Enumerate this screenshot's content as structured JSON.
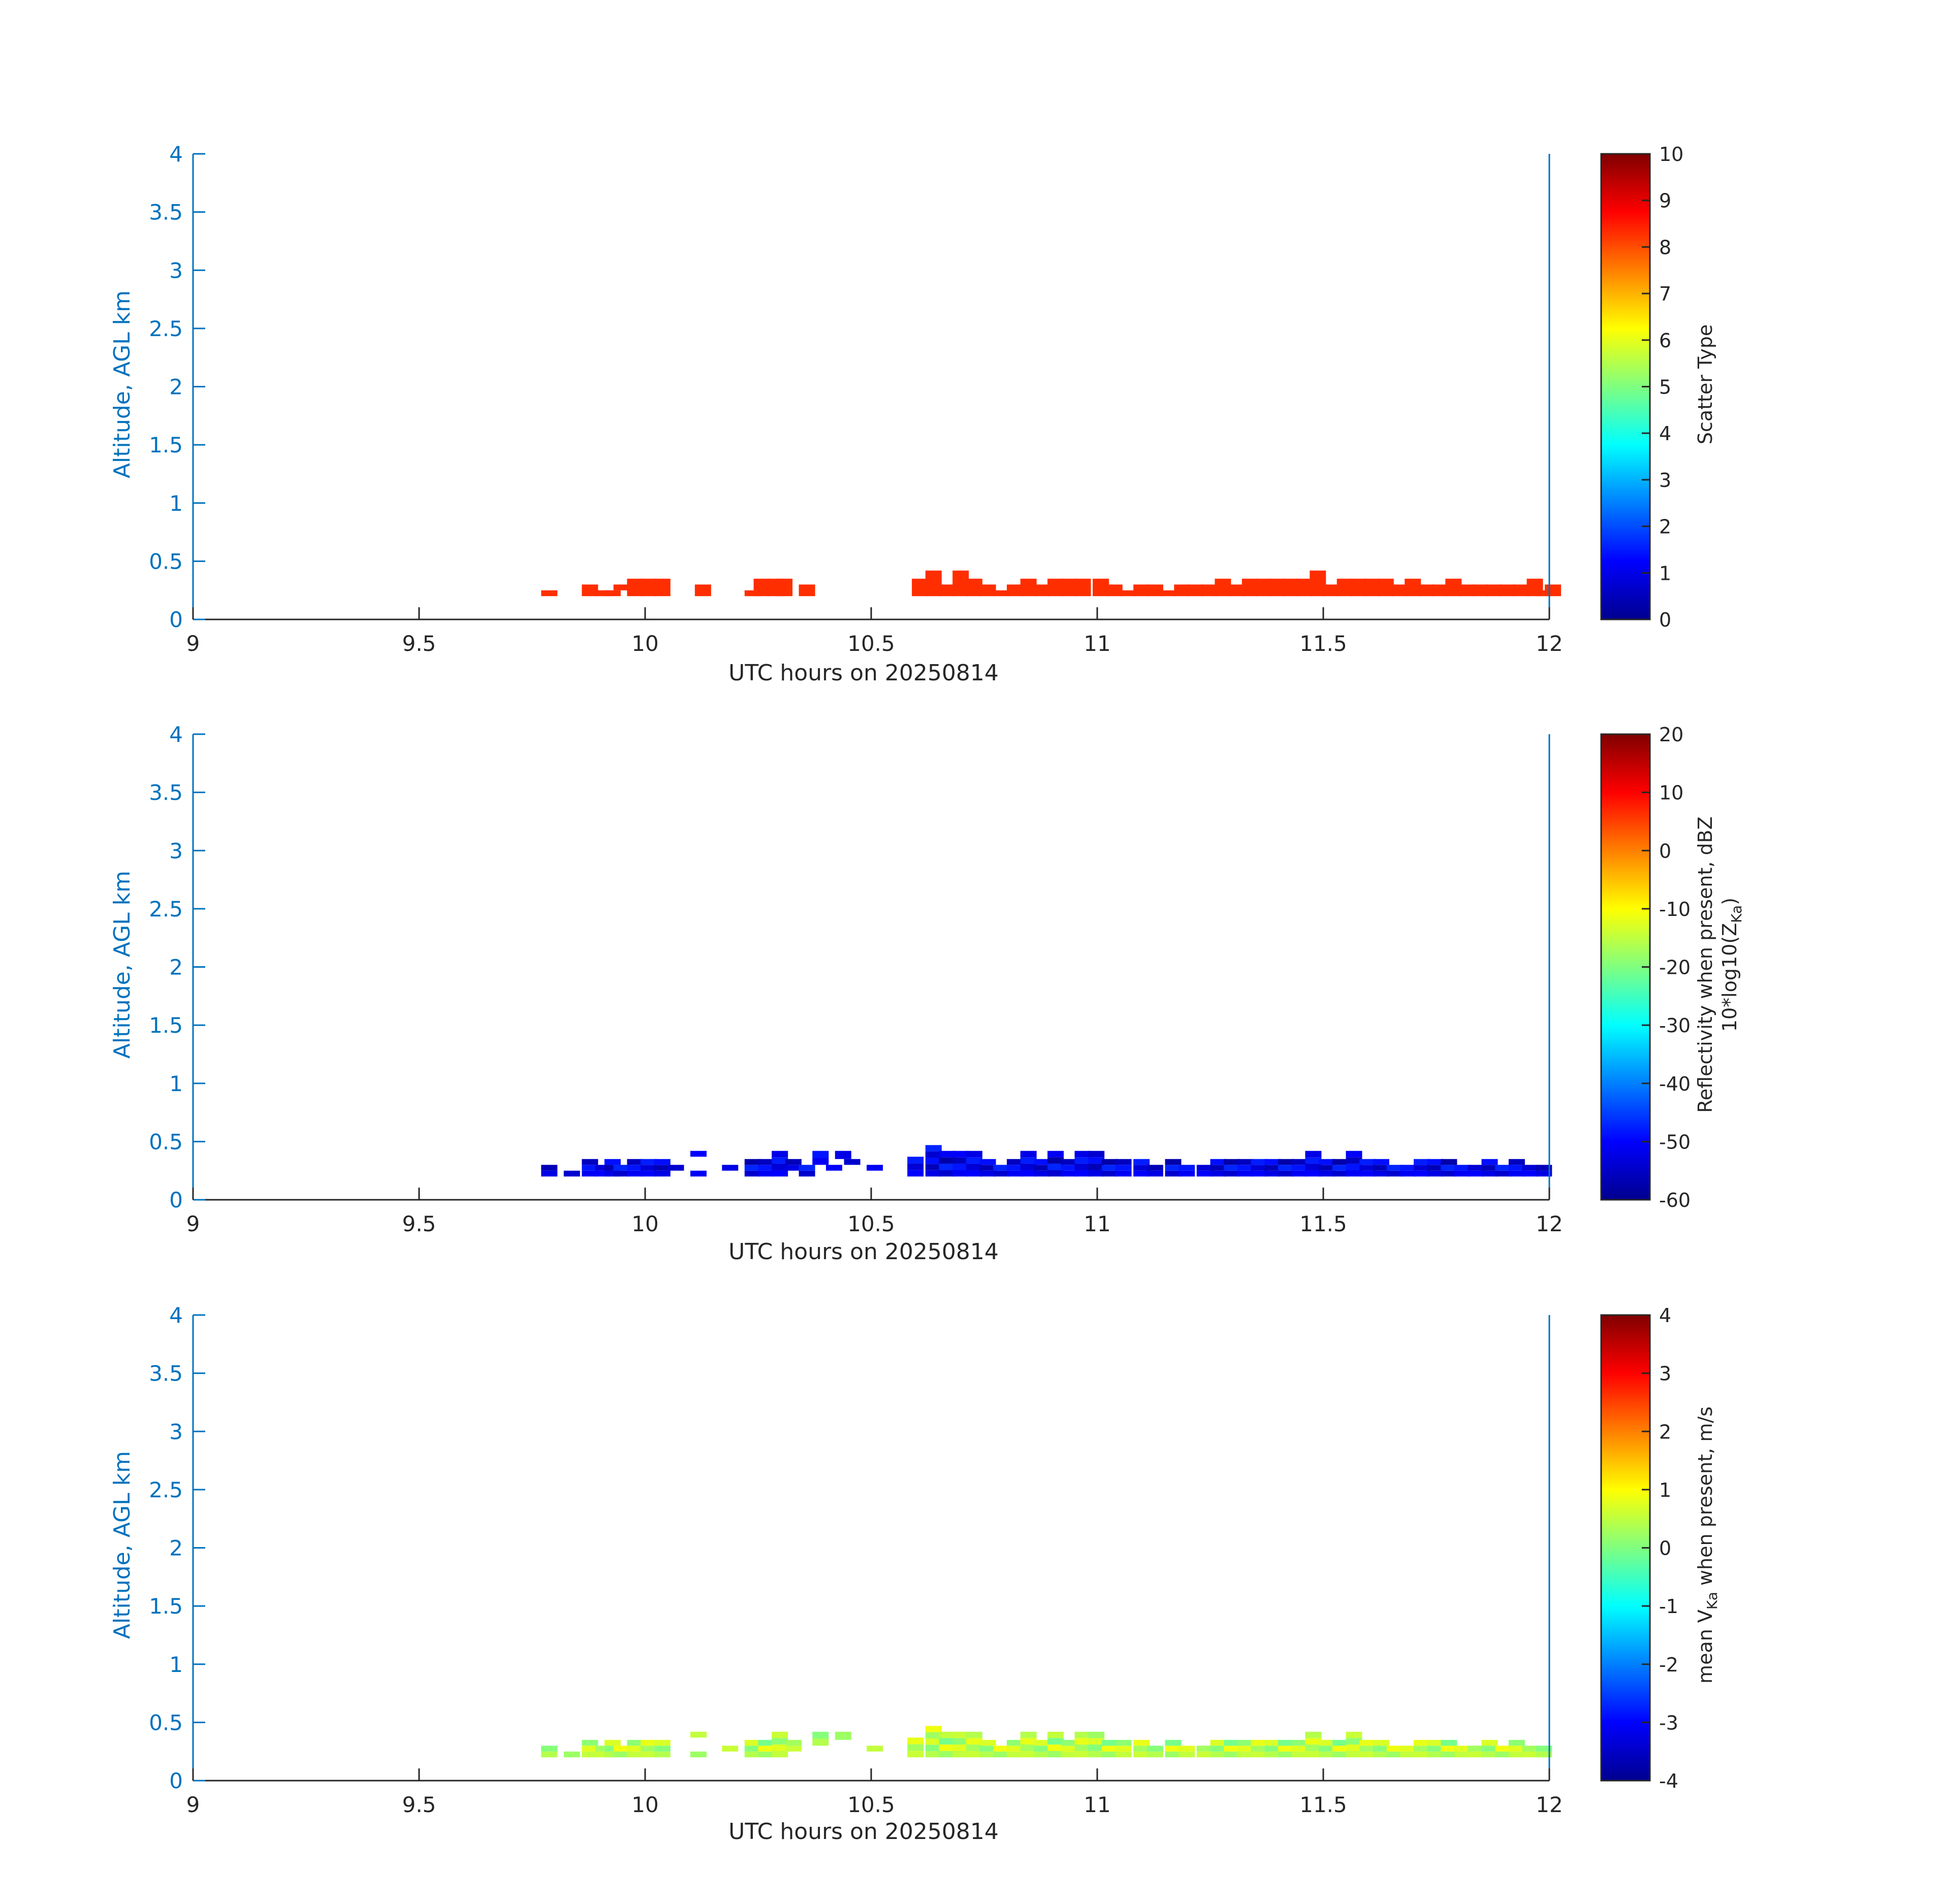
{
  "chart_data": [
    {
      "type": "heatmap",
      "xlabel": "UTC hours on 20250814",
      "ylabel": "Altitude, AGL km",
      "xlim": [
        9,
        12
      ],
      "ylim": [
        0,
        4
      ],
      "xticks": [
        "9",
        "9.5",
        "10",
        "10.5",
        "11",
        "11.5",
        "12"
      ],
      "yticks": [
        "0",
        "0.5",
        "1",
        "1.5",
        "2",
        "2.5",
        "3",
        "3.5",
        "4"
      ],
      "colorbar": {
        "label": "Scatter Type",
        "range": [
          0,
          10
        ],
        "ticks": [
          "0",
          "1",
          "2",
          "3",
          "4",
          "5",
          "6",
          "7",
          "8",
          "9",
          "10"
        ],
        "colormap": "jet"
      },
      "value": 8.3,
      "cells": [
        [
          9.77,
          0.2,
          0.25
        ],
        [
          9.86,
          0.2,
          0.3
        ],
        [
          9.89,
          0.2,
          0.25
        ],
        [
          9.91,
          0.2,
          0.25
        ],
        [
          9.93,
          0.25,
          0.3
        ],
        [
          9.96,
          0.2,
          0.35
        ],
        [
          9.99,
          0.2,
          0.35
        ],
        [
          10.02,
          0.2,
          0.35
        ],
        [
          10.11,
          0.2,
          0.3
        ],
        [
          10.22,
          0.2,
          0.25
        ],
        [
          10.24,
          0.2,
          0.35
        ],
        [
          10.27,
          0.2,
          0.35
        ],
        [
          10.29,
          0.2,
          0.35
        ],
        [
          10.34,
          0.2,
          0.3
        ],
        [
          10.59,
          0.2,
          0.35
        ],
        [
          10.62,
          0.2,
          0.42
        ],
        [
          10.65,
          0.2,
          0.3
        ],
        [
          10.68,
          0.2,
          0.42
        ],
        [
          10.71,
          0.2,
          0.35
        ],
        [
          10.74,
          0.2,
          0.3
        ],
        [
          10.77,
          0.2,
          0.25
        ],
        [
          10.8,
          0.2,
          0.3
        ],
        [
          10.83,
          0.2,
          0.35
        ],
        [
          10.86,
          0.2,
          0.3
        ],
        [
          10.89,
          0.2,
          0.35
        ],
        [
          10.92,
          0.2,
          0.35
        ],
        [
          10.95,
          0.2,
          0.35
        ],
        [
          10.99,
          0.2,
          0.35
        ],
        [
          11.02,
          0.2,
          0.3
        ],
        [
          11.05,
          0.2,
          0.25
        ],
        [
          11.08,
          0.2,
          0.3
        ],
        [
          11.11,
          0.2,
          0.3
        ],
        [
          11.14,
          0.2,
          0.25
        ],
        [
          11.17,
          0.2,
          0.3
        ],
        [
          11.2,
          0.2,
          0.3
        ],
        [
          11.23,
          0.2,
          0.3
        ],
        [
          11.26,
          0.2,
          0.35
        ],
        [
          11.29,
          0.2,
          0.3
        ],
        [
          11.32,
          0.2,
          0.35
        ],
        [
          11.35,
          0.2,
          0.35
        ],
        [
          11.38,
          0.2,
          0.35
        ],
        [
          11.41,
          0.2,
          0.35
        ],
        [
          11.44,
          0.2,
          0.35
        ],
        [
          11.47,
          0.2,
          0.42
        ],
        [
          11.5,
          0.2,
          0.3
        ],
        [
          11.53,
          0.2,
          0.35
        ],
        [
          11.56,
          0.2,
          0.35
        ],
        [
          11.59,
          0.2,
          0.35
        ],
        [
          11.62,
          0.2,
          0.35
        ],
        [
          11.65,
          0.2,
          0.3
        ],
        [
          11.68,
          0.2,
          0.35
        ],
        [
          11.71,
          0.2,
          0.3
        ],
        [
          11.74,
          0.2,
          0.3
        ],
        [
          11.77,
          0.2,
          0.35
        ],
        [
          11.8,
          0.2,
          0.3
        ],
        [
          11.83,
          0.2,
          0.3
        ],
        [
          11.86,
          0.2,
          0.3
        ],
        [
          11.89,
          0.2,
          0.3
        ],
        [
          11.92,
          0.2,
          0.3
        ],
        [
          11.95,
          0.2,
          0.35
        ],
        [
          11.97,
          0.2,
          0.25
        ],
        [
          11.99,
          0.2,
          0.3
        ]
      ]
    },
    {
      "type": "heatmap",
      "xlabel": "UTC hours on 20250814",
      "ylabel": "Altitude, AGL km",
      "xlim": [
        9,
        12
      ],
      "ylim": [
        0,
        4
      ],
      "xticks": [
        "9",
        "9.5",
        "10",
        "10.5",
        "11",
        "11.5",
        "12"
      ],
      "yticks": [
        "0",
        "0.5",
        "1",
        "1.5",
        "2",
        "2.5",
        "3",
        "3.5",
        "4"
      ],
      "colorbar": {
        "label": "Reflectivity when present, dBZ",
        "label2": "10*log10(Z",
        "label2_sub": "Ka",
        "label2_end": ")",
        "range": [
          -60,
          20
        ],
        "ticks": [
          "-60",
          "-50",
          "-40",
          "-30",
          "-20",
          "-10",
          "0",
          "10",
          "20"
        ],
        "colormap": "jet"
      },
      "value": -52,
      "cells": [
        [
          9.77,
          0.2,
          0.3
        ],
        [
          9.82,
          0.2,
          0.25
        ],
        [
          9.86,
          0.2,
          0.35
        ],
        [
          9.89,
          0.2,
          0.3
        ],
        [
          9.91,
          0.2,
          0.35
        ],
        [
          9.93,
          0.2,
          0.3
        ],
        [
          9.96,
          0.2,
          0.35
        ],
        [
          9.99,
          0.2,
          0.35
        ],
        [
          10.02,
          0.2,
          0.35
        ],
        [
          10.05,
          0.25,
          0.3
        ],
        [
          10.1,
          0.2,
          0.25
        ],
        [
          10.1,
          0.37,
          0.42
        ],
        [
          10.17,
          0.25,
          0.3
        ],
        [
          10.22,
          0.2,
          0.35
        ],
        [
          10.25,
          0.2,
          0.35
        ],
        [
          10.28,
          0.2,
          0.42
        ],
        [
          10.31,
          0.25,
          0.35
        ],
        [
          10.34,
          0.2,
          0.3
        ],
        [
          10.37,
          0.3,
          0.42
        ],
        [
          10.4,
          0.25,
          0.3
        ],
        [
          10.42,
          0.35,
          0.42
        ],
        [
          10.44,
          0.3,
          0.35
        ],
        [
          10.49,
          0.25,
          0.3
        ],
        [
          10.58,
          0.2,
          0.37
        ],
        [
          10.62,
          0.2,
          0.47
        ],
        [
          10.65,
          0.2,
          0.42
        ],
        [
          10.68,
          0.2,
          0.42
        ],
        [
          10.71,
          0.2,
          0.42
        ],
        [
          10.74,
          0.2,
          0.35
        ],
        [
          10.77,
          0.2,
          0.3
        ],
        [
          10.8,
          0.2,
          0.35
        ],
        [
          10.83,
          0.2,
          0.42
        ],
        [
          10.86,
          0.2,
          0.35
        ],
        [
          10.89,
          0.2,
          0.42
        ],
        [
          10.92,
          0.2,
          0.35
        ],
        [
          10.95,
          0.2,
          0.42
        ],
        [
          10.98,
          0.2,
          0.42
        ],
        [
          11.01,
          0.2,
          0.35
        ],
        [
          11.04,
          0.2,
          0.35
        ],
        [
          11.08,
          0.2,
          0.35
        ],
        [
          11.11,
          0.2,
          0.3
        ],
        [
          11.15,
          0.2,
          0.35
        ],
        [
          11.18,
          0.2,
          0.3
        ],
        [
          11.22,
          0.2,
          0.3
        ],
        [
          11.25,
          0.2,
          0.35
        ],
        [
          11.28,
          0.2,
          0.35
        ],
        [
          11.31,
          0.2,
          0.35
        ],
        [
          11.34,
          0.2,
          0.35
        ],
        [
          11.37,
          0.2,
          0.35
        ],
        [
          11.4,
          0.2,
          0.35
        ],
        [
          11.43,
          0.2,
          0.35
        ],
        [
          11.46,
          0.2,
          0.42
        ],
        [
          11.49,
          0.2,
          0.35
        ],
        [
          11.52,
          0.2,
          0.35
        ],
        [
          11.55,
          0.2,
          0.42
        ],
        [
          11.58,
          0.2,
          0.35
        ],
        [
          11.61,
          0.2,
          0.35
        ],
        [
          11.64,
          0.2,
          0.3
        ],
        [
          11.67,
          0.2,
          0.3
        ],
        [
          11.7,
          0.2,
          0.35
        ],
        [
          11.73,
          0.2,
          0.35
        ],
        [
          11.76,
          0.2,
          0.35
        ],
        [
          11.79,
          0.2,
          0.3
        ],
        [
          11.82,
          0.2,
          0.3
        ],
        [
          11.85,
          0.2,
          0.35
        ],
        [
          11.88,
          0.2,
          0.3
        ],
        [
          11.91,
          0.2,
          0.35
        ],
        [
          11.94,
          0.2,
          0.3
        ],
        [
          11.97,
          0.2,
          0.3
        ]
      ]
    },
    {
      "type": "heatmap",
      "xlabel": "UTC hours on 20250814",
      "ylabel": "Altitude, AGL km",
      "xlim": [
        9,
        12
      ],
      "ylim": [
        0,
        4
      ],
      "xticks": [
        "9",
        "9.5",
        "10",
        "10.5",
        "11",
        "11.5",
        "12"
      ],
      "yticks": [
        "0",
        "0.5",
        "1",
        "1.5",
        "2",
        "2.5",
        "3",
        "3.5",
        "4"
      ],
      "colorbar": {
        "label_pre": "mean V",
        "label_sub": "Ka",
        "label_post": " when present, m/s",
        "range": [
          -4,
          4
        ],
        "ticks": [
          "-4",
          "-3",
          "-2",
          "-1",
          "0",
          "1",
          "2",
          "3",
          "4"
        ],
        "colormap": "jet"
      },
      "value": 0.4,
      "cells": [
        [
          9.77,
          0.2,
          0.3
        ],
        [
          9.82,
          0.2,
          0.25
        ],
        [
          9.86,
          0.2,
          0.35
        ],
        [
          9.89,
          0.2,
          0.3
        ],
        [
          9.91,
          0.2,
          0.35
        ],
        [
          9.93,
          0.2,
          0.3
        ],
        [
          9.96,
          0.2,
          0.35
        ],
        [
          9.99,
          0.2,
          0.35
        ],
        [
          10.02,
          0.2,
          0.35
        ],
        [
          10.1,
          0.2,
          0.25
        ],
        [
          10.1,
          0.37,
          0.42
        ],
        [
          10.17,
          0.25,
          0.3
        ],
        [
          10.22,
          0.2,
          0.35
        ],
        [
          10.25,
          0.2,
          0.35
        ],
        [
          10.28,
          0.2,
          0.42
        ],
        [
          10.31,
          0.25,
          0.35
        ],
        [
          10.37,
          0.3,
          0.42
        ],
        [
          10.42,
          0.35,
          0.42
        ],
        [
          10.49,
          0.25,
          0.3
        ],
        [
          10.58,
          0.2,
          0.37
        ],
        [
          10.62,
          0.2,
          0.47
        ],
        [
          10.65,
          0.2,
          0.42
        ],
        [
          10.68,
          0.2,
          0.42
        ],
        [
          10.71,
          0.2,
          0.42
        ],
        [
          10.74,
          0.2,
          0.35
        ],
        [
          10.77,
          0.2,
          0.3
        ],
        [
          10.8,
          0.2,
          0.35
        ],
        [
          10.83,
          0.2,
          0.42
        ],
        [
          10.86,
          0.2,
          0.35
        ],
        [
          10.89,
          0.2,
          0.42
        ],
        [
          10.92,
          0.2,
          0.35
        ],
        [
          10.95,
          0.2,
          0.42
        ],
        [
          10.98,
          0.2,
          0.42
        ],
        [
          11.01,
          0.2,
          0.35
        ],
        [
          11.04,
          0.2,
          0.35
        ],
        [
          11.08,
          0.2,
          0.35
        ],
        [
          11.11,
          0.2,
          0.3
        ],
        [
          11.15,
          0.2,
          0.35
        ],
        [
          11.18,
          0.2,
          0.3
        ],
        [
          11.22,
          0.2,
          0.3
        ],
        [
          11.25,
          0.2,
          0.35
        ],
        [
          11.28,
          0.2,
          0.35
        ],
        [
          11.31,
          0.2,
          0.35
        ],
        [
          11.34,
          0.2,
          0.35
        ],
        [
          11.37,
          0.2,
          0.35
        ],
        [
          11.4,
          0.2,
          0.35
        ],
        [
          11.43,
          0.2,
          0.35
        ],
        [
          11.46,
          0.2,
          0.42
        ],
        [
          11.49,
          0.2,
          0.35
        ],
        [
          11.52,
          0.2,
          0.35
        ],
        [
          11.55,
          0.2,
          0.42
        ],
        [
          11.58,
          0.2,
          0.35
        ],
        [
          11.61,
          0.2,
          0.35
        ],
        [
          11.64,
          0.2,
          0.3
        ],
        [
          11.67,
          0.2,
          0.3
        ],
        [
          11.7,
          0.2,
          0.35
        ],
        [
          11.73,
          0.2,
          0.35
        ],
        [
          11.76,
          0.2,
          0.35
        ],
        [
          11.79,
          0.2,
          0.3
        ],
        [
          11.82,
          0.2,
          0.3
        ],
        [
          11.85,
          0.2,
          0.35
        ],
        [
          11.88,
          0.2,
          0.3
        ],
        [
          11.91,
          0.2,
          0.35
        ],
        [
          11.94,
          0.2,
          0.3
        ],
        [
          11.97,
          0.2,
          0.3
        ]
      ]
    }
  ],
  "colors": {
    "axis_y": "#0072BD",
    "axis_x": "#262626"
  }
}
